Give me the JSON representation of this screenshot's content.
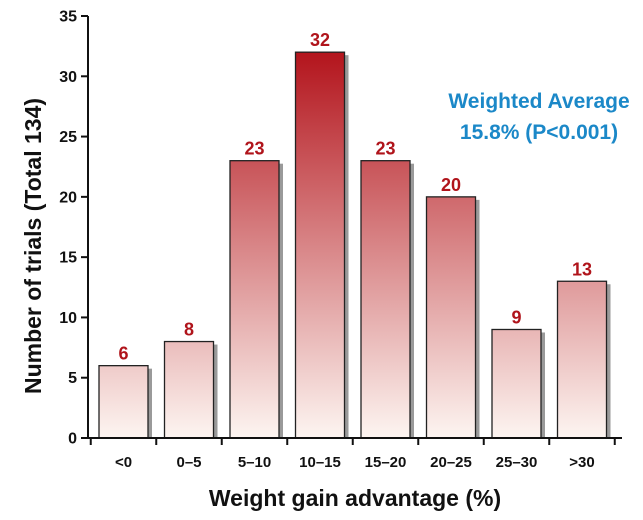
{
  "chart_data": {
    "type": "bar",
    "categories": [
      "<0",
      "0–5",
      "5–10",
      "10–15",
      "15–20",
      "20–25",
      "25–30",
      ">30"
    ],
    "values": [
      6,
      8,
      23,
      32,
      23,
      20,
      9,
      13
    ],
    "title": "",
    "xlabel": "Weight gain advantage (%)",
    "ylabel": "Number of trials (Total 134)",
    "ylim": [
      0,
      35
    ],
    "yticks": [
      0,
      5,
      10,
      15,
      20,
      25,
      30,
      35
    ],
    "grid": false,
    "data_labels": [
      "6",
      "8",
      "23",
      "32",
      "23",
      "20",
      "9",
      "13"
    ],
    "annotation": {
      "line1": "Weighted Average",
      "line2": "15.8% (P<0.001)"
    },
    "colors": {
      "bar_top": "#b3141c",
      "bar_bottom": "#fdf5f1",
      "bar_shadow": "#9a9a9a",
      "data_label": "#b0141b",
      "annotation": "#1b88c8",
      "axis": "#111111"
    }
  }
}
